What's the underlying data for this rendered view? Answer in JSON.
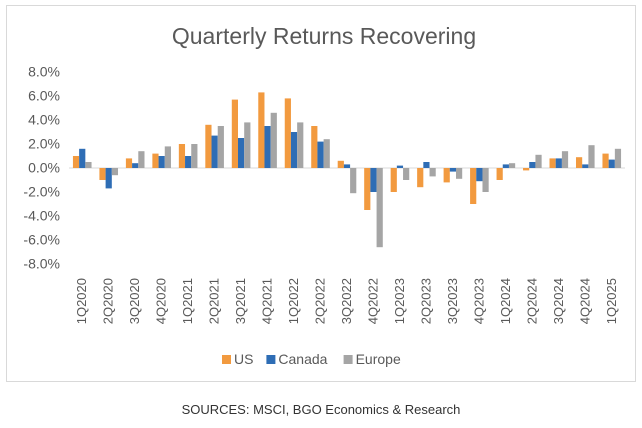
{
  "chart_data": {
    "type": "bar",
    "title": "Quarterly Returns Recovering",
    "xlabel": "",
    "ylabel": "",
    "ylim": [
      -8.0,
      8.0
    ],
    "ytick_step": 2.0,
    "y_format": "percent_1dp",
    "gridlines": false,
    "legend_position": "bottom",
    "categories": [
      "1Q2020",
      "2Q2020",
      "3Q2020",
      "4Q2020",
      "1Q2021",
      "2Q2021",
      "3Q2021",
      "4Q2021",
      "1Q2022",
      "2Q2022",
      "3Q2022",
      "4Q2022",
      "1Q2023",
      "2Q2023",
      "3Q2023",
      "4Q2023",
      "1Q2024",
      "2Q2024",
      "3Q2024",
      "4Q2024",
      "1Q2025"
    ],
    "series": [
      {
        "name": "US",
        "color": "#F29A3F",
        "values": [
          1.0,
          -1.0,
          0.8,
          1.2,
          2.0,
          3.6,
          5.7,
          6.3,
          5.8,
          3.5,
          0.6,
          -3.5,
          -2.0,
          -1.6,
          -1.2,
          -3.0,
          -1.0,
          -0.2,
          0.8,
          0.9,
          1.2
        ]
      },
      {
        "name": "Canada",
        "color": "#2E6DB5",
        "values": [
          1.6,
          -1.7,
          0.4,
          1.0,
          1.0,
          2.7,
          2.5,
          3.5,
          3.0,
          2.2,
          0.3,
          -2.0,
          0.2,
          0.5,
          -0.3,
          -1.1,
          0.3,
          0.5,
          0.8,
          0.3,
          0.7
        ]
      },
      {
        "name": "Europe",
        "color": "#A5A5A5",
        "values": [
          0.5,
          -0.6,
          1.4,
          1.8,
          2.0,
          3.5,
          3.8,
          4.6,
          3.8,
          2.4,
          -2.1,
          -6.6,
          -1.0,
          -0.7,
          -0.9,
          -2.0,
          0.4,
          1.1,
          1.4,
          1.9,
          1.6
        ]
      }
    ]
  },
  "footer": {
    "source": "SOURCES: MSCI, BGO Economics & Research"
  }
}
